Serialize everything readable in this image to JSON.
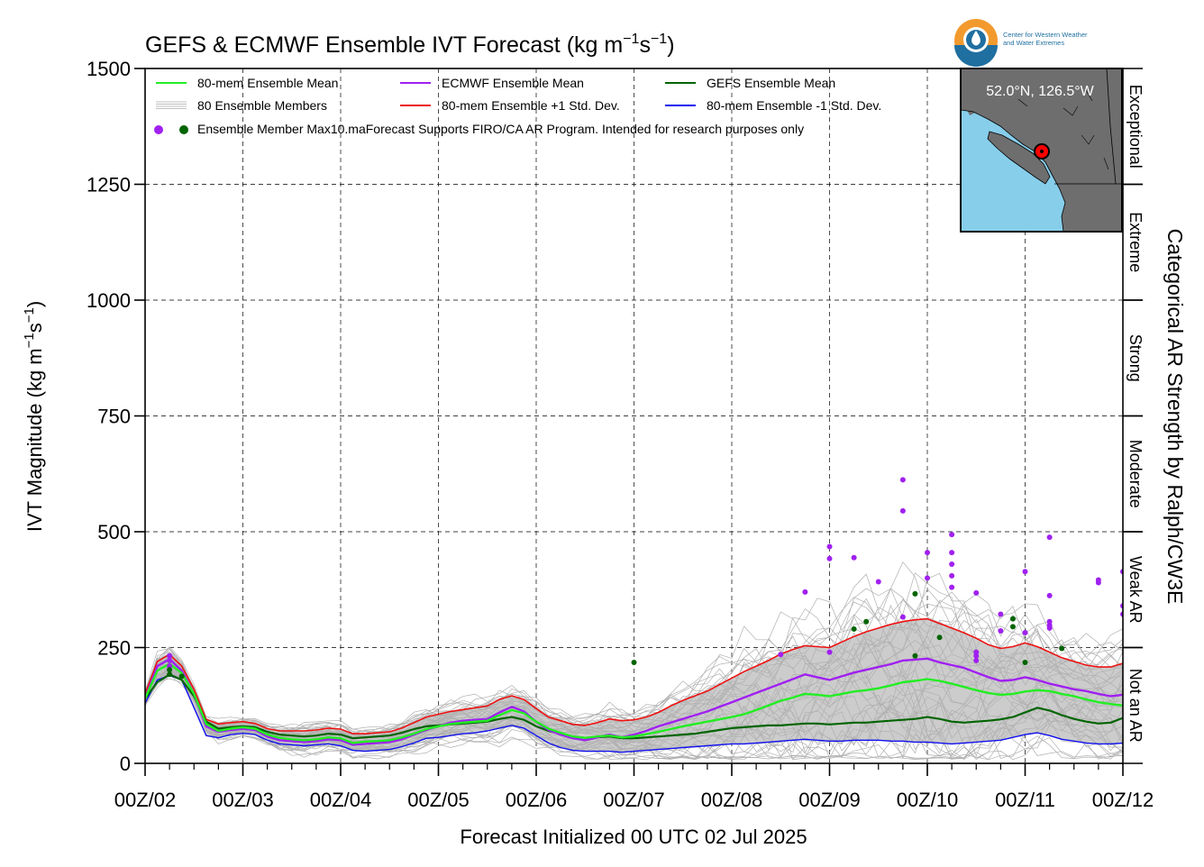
{
  "logo": {
    "line1": "Center for Western Weather",
    "line2": "and Water Extremes",
    "brand_orange": "#f29a2e",
    "brand_blue": "#1f6fa0"
  },
  "inset_map": {
    "label": "52.0°N, 126.5°W",
    "ocean_color": "#87ceeb",
    "land_color": "#6e6e6e",
    "marker_color": "#ff0000"
  },
  "chart_data": {
    "type": "line",
    "title_main": "GEFS & ECMWF Ensemble IVT Forecast (kg m",
    "title_sup1": "−1",
    "title_mid": "s",
    "title_sup2": "−1",
    "title_end": ")",
    "ylabel_main": "IVT Magnitude (kg m",
    "ylabel_sup1": "−1",
    "ylabel_mid": "s",
    "ylabel_sup2": "−1",
    "ylabel_end": ")",
    "xlabel": "Forecast Initialized 00 UTC 02 Jul 2025",
    "right_label": "Categorical AR Strength by Ralph/CW3E",
    "ylim": [
      0,
      1500
    ],
    "xlim_days": [
      2,
      12
    ],
    "y_ticks": [
      "0",
      "250",
      "500",
      "750",
      "1000",
      "1250",
      "1500"
    ],
    "x_ticks": [
      "00Z/02",
      "00Z/03",
      "00Z/04",
      "00Z/05",
      "00Z/06",
      "00Z/07",
      "00Z/08",
      "00Z/09",
      "00Z/10",
      "00Z/11",
      "00Z/12"
    ],
    "grid": true,
    "legend_position": "top-left",
    "legend": [
      {
        "label": "80-mem Ensemble Mean",
        "color": "#22ee22",
        "style": "line"
      },
      {
        "label": "ECMWF Ensemble Mean",
        "color": "#a020f0",
        "style": "line"
      },
      {
        "label": "GEFS Ensemble Mean",
        "color": "#006400",
        "style": "line"
      },
      {
        "label": "80 Ensemble Members",
        "color": "#aaaaaa",
        "style": "thin"
      },
      {
        "label": "80-mem Ensemble +1 Std. Dev.",
        "color": "#ee1111",
        "style": "line"
      },
      {
        "label": "80-mem Ensemble -1 Std. Dev.",
        "color": "#1010ee",
        "style": "line"
      },
      {
        "label": "Ensemble Member Max",
        "color": "#a020f0",
        "style": "dots"
      }
    ],
    "disclaimer": "10.maForecast Supports FIRO/CA AR Program. Intended for research purposes only",
    "categories": [
      {
        "label": "Exceptional",
        "min": 1250,
        "max": 1500
      },
      {
        "label": "Extreme",
        "min": 1000,
        "max": 1250
      },
      {
        "label": "Strong",
        "min": 750,
        "max": 1000
      },
      {
        "label": "Moderate",
        "min": 500,
        "max": 750
      },
      {
        "label": "Weak AR",
        "min": 250,
        "max": 500
      },
      {
        "label": "Not an AR",
        "min": 0,
        "max": 250
      }
    ],
    "x": [
      2.0,
      2.125,
      2.25,
      2.375,
      2.5,
      2.625,
      2.75,
      2.875,
      3.0,
      3.125,
      3.25,
      3.375,
      3.5,
      3.625,
      3.75,
      3.875,
      4.0,
      4.125,
      4.25,
      4.375,
      4.5,
      4.625,
      4.75,
      4.875,
      5.0,
      5.125,
      5.25,
      5.375,
      5.5,
      5.625,
      5.75,
      5.875,
      6.0,
      6.125,
      6.25,
      6.375,
      6.5,
      6.625,
      6.75,
      6.875,
      7.0,
      7.125,
      7.25,
      7.375,
      7.5,
      7.625,
      7.75,
      7.875,
      8.0,
      8.125,
      8.25,
      8.375,
      8.5,
      8.625,
      8.75,
      8.875,
      9.0,
      9.125,
      9.25,
      9.375,
      9.5,
      9.625,
      9.75,
      9.875,
      10.0,
      10.125,
      10.25,
      10.375,
      10.5,
      10.625,
      10.75,
      10.875,
      11.0,
      11.125,
      11.25,
      11.375,
      11.5,
      11.625,
      11.75,
      11.875,
      12.0
    ],
    "series": [
      {
        "name": "80-mem Ensemble Mean",
        "color": "#22ee22",
        "width": 2.4,
        "values": [
          140,
          200,
          215,
          195,
          150,
          85,
          70,
          75,
          78,
          75,
          62,
          55,
          52,
          50,
          52,
          56,
          54,
          44,
          47,
          48,
          50,
          56,
          64,
          74,
          80,
          85,
          88,
          90,
          92,
          104,
          115,
          108,
          90,
          75,
          66,
          58,
          55,
          58,
          60,
          56,
          58,
          63,
          68,
          74,
          80,
          85,
          90,
          95,
          100,
          106,
          115,
          125,
          135,
          142,
          150,
          148,
          145,
          150,
          155,
          158,
          162,
          168,
          175,
          178,
          182,
          178,
          172,
          165,
          158,
          152,
          148,
          150,
          155,
          158,
          156,
          150,
          145,
          138,
          132,
          128,
          125
        ]
      },
      {
        "name": "ECMWF Ensemble Mean",
        "color": "#a020f0",
        "width": 2.4,
        "values": [
          140,
          210,
          225,
          200,
          150,
          80,
          68,
          72,
          75,
          72,
          58,
          50,
          48,
          46,
          48,
          52,
          50,
          40,
          42,
          44,
          46,
          52,
          62,
          72,
          80,
          88,
          92,
          94,
          96,
          110,
          122,
          112,
          90,
          72,
          62,
          54,
          50,
          56,
          62,
          56,
          62,
          70,
          80,
          88,
          96,
          104,
          112,
          122,
          132,
          142,
          152,
          162,
          172,
          182,
          192,
          186,
          180,
          188,
          196,
          202,
          208,
          214,
          222,
          224,
          226,
          218,
          212,
          206,
          196,
          186,
          178,
          180,
          186,
          180,
          172,
          166,
          160,
          156,
          150,
          145,
          148
        ]
      },
      {
        "name": "GEFS Ensemble Mean",
        "color": "#006400",
        "width": 2.2,
        "values": [
          140,
          175,
          192,
          180,
          145,
          90,
          75,
          78,
          80,
          78,
          68,
          62,
          60,
          58,
          60,
          64,
          62,
          54,
          56,
          58,
          60,
          66,
          74,
          80,
          82,
          84,
          86,
          88,
          90,
          96,
          100,
          94,
          80,
          70,
          64,
          58,
          55,
          56,
          58,
          54,
          54,
          56,
          58,
          60,
          62,
          64,
          68,
          72,
          76,
          78,
          80,
          82,
          82,
          84,
          86,
          86,
          84,
          86,
          88,
          88,
          90,
          92,
          94,
          96,
          100,
          96,
          90,
          88,
          90,
          92,
          95,
          100,
          110,
          120,
          114,
          104,
          96,
          90,
          86,
          88,
          98
        ]
      },
      {
        "name": "80-mem Ensemble +1 Std. Dev.",
        "color": "#ee1111",
        "width": 1.6,
        "values": [
          150,
          220,
          235,
          210,
          160,
          95,
          85,
          88,
          90,
          86,
          75,
          70,
          70,
          70,
          72,
          76,
          74,
          64,
          64,
          66,
          68,
          76,
          88,
          100,
          106,
          112,
          116,
          120,
          124,
          138,
          146,
          138,
          118,
          100,
          92,
          84,
          82,
          88,
          96,
          92,
          94,
          100,
          110,
          124,
          136,
          146,
          156,
          170,
          184,
          198,
          210,
          222,
          236,
          246,
          254,
          252,
          250,
          262,
          274,
          284,
          292,
          300,
          306,
          310,
          312,
          302,
          292,
          282,
          270,
          256,
          248,
          252,
          260,
          252,
          240,
          228,
          220,
          212,
          208,
          208,
          216
        ]
      },
      {
        "name": "80-mem Ensemble -1 Std. Dev.",
        "color": "#1010ee",
        "width": 1.4,
        "values": [
          130,
          180,
          190,
          180,
          120,
          60,
          55,
          62,
          65,
          62,
          50,
          42,
          40,
          38,
          40,
          42,
          38,
          28,
          26,
          28,
          30,
          36,
          44,
          54,
          56,
          60,
          64,
          66,
          70,
          76,
          82,
          76,
          60,
          44,
          34,
          28,
          26,
          26,
          26,
          24,
          26,
          28,
          30,
          32,
          34,
          36,
          38,
          40,
          42,
          42,
          44,
          46,
          48,
          50,
          52,
          50,
          48,
          48,
          50,
          50,
          50,
          48,
          48,
          46,
          46,
          44,
          42,
          44,
          46,
          48,
          50,
          56,
          62,
          66,
          60,
          52,
          48,
          44,
          42,
          42,
          44
        ]
      }
    ],
    "gray_band_color": "#cccccc",
    "member_color": "#b0b0b0",
    "ecmwf_max_points": {
      "color": "#a020f0",
      "x": [
        2.25,
        2.25,
        2.25,
        8.5,
        8.75,
        9.0,
        9.0,
        9.0,
        9.25,
        9.5,
        9.75,
        9.75,
        9.75,
        10.0,
        10.0,
        10.25,
        10.25,
        10.25,
        10.25,
        10.25,
        10.5,
        10.5,
        10.5,
        10.5,
        10.75,
        10.75,
        11.0,
        11.0,
        11.25,
        11.25,
        11.25,
        11.25,
        11.25,
        11.75,
        11.75,
        12.0,
        12.0,
        12.0
      ],
      "y": [
        232,
        222,
        210,
        235,
        370,
        468,
        442,
        240,
        444,
        392,
        612,
        545,
        316,
        455,
        400,
        494,
        455,
        430,
        405,
        380,
        368,
        240,
        232,
        222,
        322,
        286,
        414,
        282,
        488,
        362,
        306,
        298,
        292,
        396,
        390,
        414,
        340,
        322
      ]
    },
    "gefs_max_points": {
      "color": "#006400",
      "x": [
        2.25,
        2.25,
        2.375,
        7.0,
        9.25,
        9.375,
        9.875,
        9.875,
        10.125,
        10.875,
        10.875,
        11.0,
        11.375
      ],
      "y": [
        202,
        192,
        188,
        218,
        290,
        306,
        366,
        232,
        272,
        312,
        295,
        218,
        248
      ]
    }
  }
}
